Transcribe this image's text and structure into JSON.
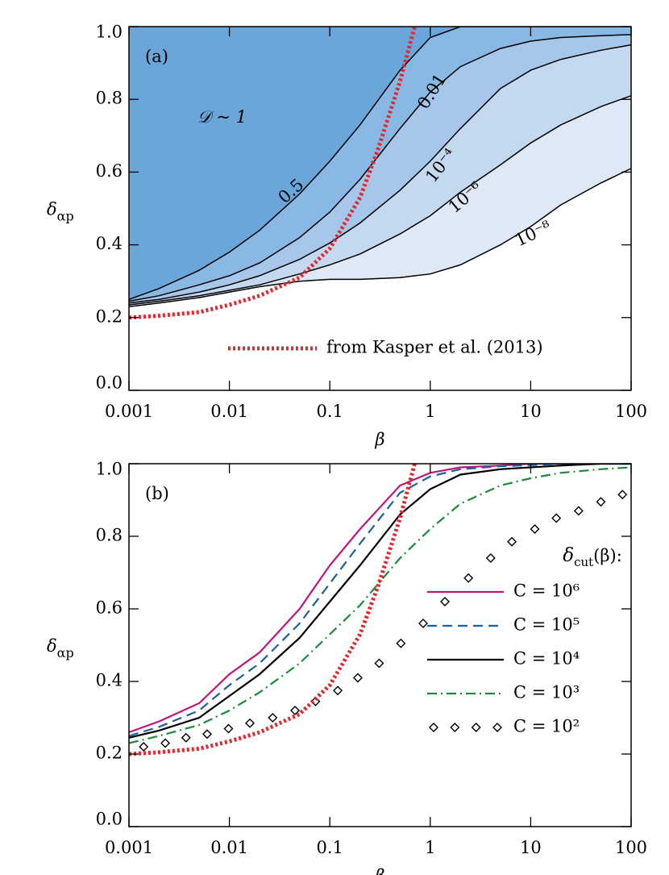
{
  "chart_data": [
    {
      "type": "contour",
      "panel_label": "(a)",
      "region_label": "𝒟 ~ 1",
      "x_label": "β",
      "y_label": {
        "main": "δ",
        "sub": "αp"
      },
      "log_x": true,
      "xlim": [
        0.001,
        100
      ],
      "ylim": [
        0,
        1
      ],
      "xticks": [
        0.001,
        0.01,
        0.1,
        1,
        10,
        100
      ],
      "yticks": [
        {
          "value": 0,
          "label": "0.0"
        },
        0.2,
        0.4,
        0.6,
        0.8,
        {
          "value": 1,
          "label": "1.0"
        }
      ],
      "x": [
        0.001,
        0.002,
        0.005,
        0.01,
        0.02,
        0.05,
        0.1,
        0.2,
        0.5,
        1,
        2,
        5,
        10,
        20,
        50,
        100
      ],
      "contours": [
        {
          "label": "0.5",
          "fill": "#6ba6da",
          "values": [
            0.25,
            0.28,
            0.33,
            0.38,
            0.44,
            0.54,
            0.63,
            0.73,
            0.88,
            0.97,
            1.0,
            1.0,
            1.0,
            1.0,
            1.0,
            1.0
          ]
        },
        {
          "label": "0.01",
          "fill": "#8ab8e4",
          "values": [
            0.245,
            0.26,
            0.29,
            0.315,
            0.35,
            0.42,
            0.49,
            0.58,
            0.72,
            0.82,
            0.89,
            0.94,
            0.96,
            0.97,
            0.975,
            0.978
          ]
        },
        {
          "label": "10⁻⁴",
          "fill": "#a6c7ea",
          "values": [
            0.24,
            0.25,
            0.27,
            0.29,
            0.315,
            0.36,
            0.405,
            0.46,
            0.55,
            0.63,
            0.72,
            0.83,
            0.88,
            0.91,
            0.935,
            0.95
          ]
        },
        {
          "label": "10⁻⁶",
          "fill": "#c4d8f0",
          "values": [
            0.235,
            0.245,
            0.26,
            0.275,
            0.29,
            0.32,
            0.345,
            0.375,
            0.43,
            0.48,
            0.545,
            0.62,
            0.68,
            0.73,
            0.78,
            0.81
          ]
        },
        {
          "label": "10⁻⁸",
          "fill": "#dfe8f6",
          "values": [
            0.23,
            0.24,
            0.255,
            0.27,
            0.285,
            0.3,
            0.305,
            0.305,
            0.31,
            0.32,
            0.345,
            0.4,
            0.45,
            0.51,
            0.57,
            0.61
          ]
        }
      ],
      "series": [
        {
          "name": "from Kasper et al. (2013)",
          "color": "#e2282e",
          "style": "dotted",
          "x": [
            0.001,
            0.002,
            0.005,
            0.01,
            0.02,
            0.05,
            0.1,
            0.2,
            0.3,
            0.5,
            0.7
          ],
          "values": [
            0.2,
            0.205,
            0.215,
            0.235,
            0.26,
            0.31,
            0.39,
            0.53,
            0.66,
            0.85,
            1.0
          ]
        }
      ],
      "legend": "lower right"
    },
    {
      "type": "line",
      "panel_label": "(b)",
      "x_label": "β",
      "y_label": {
        "main": "δ",
        "sub": "αp"
      },
      "log_x": true,
      "xlim": [
        0.001,
        100
      ],
      "ylim": [
        0,
        1
      ],
      "xticks": [
        0.001,
        0.01,
        0.1,
        1,
        10,
        100
      ],
      "yticks": [
        {
          "value": 0,
          "label": "0.0"
        },
        0.2,
        0.4,
        0.6,
        0.8,
        {
          "value": 1,
          "label": "1.0"
        }
      ],
      "x": [
        0.001,
        0.002,
        0.005,
        0.01,
        0.02,
        0.05,
        0.1,
        0.2,
        0.5,
        1,
        2,
        5,
        10,
        20,
        50,
        100
      ],
      "legend_title": {
        "main": "δ",
        "sub": "cut",
        "rest": "(β):"
      },
      "series": [
        {
          "name": "C = 10⁶",
          "color": "#c0157b",
          "style": "solid",
          "values": [
            0.26,
            0.29,
            0.34,
            0.42,
            0.48,
            0.6,
            0.72,
            0.82,
            0.94,
            0.975,
            0.99,
            0.995,
            1.0,
            1.0,
            1.0,
            1.0
          ]
        },
        {
          "name": "C = 10⁵",
          "color": "#1f5f9f",
          "style": "dashed",
          "values": [
            0.25,
            0.275,
            0.32,
            0.39,
            0.45,
            0.56,
            0.67,
            0.78,
            0.92,
            0.965,
            0.985,
            0.993,
            0.996,
            1.0,
            1.0,
            1.0
          ]
        },
        {
          "name": "C = 10⁴",
          "color": "#000000",
          "style": "solid",
          "values": [
            0.245,
            0.265,
            0.3,
            0.36,
            0.42,
            0.52,
            0.62,
            0.72,
            0.86,
            0.93,
            0.97,
            0.985,
            0.99,
            0.995,
            1.0,
            1.0
          ]
        },
        {
          "name": "C = 10³",
          "color": "#1a8a3c",
          "style": "dashdot",
          "values": [
            0.23,
            0.25,
            0.28,
            0.32,
            0.37,
            0.45,
            0.53,
            0.61,
            0.74,
            0.82,
            0.89,
            0.94,
            0.96,
            0.975,
            0.985,
            0.99
          ]
        },
        {
          "name": "C = 10²",
          "color": "#000000",
          "style": "diamond",
          "x": [
            0.0014,
            0.0023,
            0.0037,
            0.006,
            0.0098,
            0.016,
            0.027,
            0.045,
            0.072,
            0.12,
            0.19,
            0.31,
            0.51,
            0.85,
            1.4,
            2.4,
            4,
            6.5,
            11,
            18,
            30,
            50,
            82
          ],
          "values": [
            0.22,
            0.23,
            0.245,
            0.255,
            0.27,
            0.285,
            0.3,
            0.32,
            0.345,
            0.375,
            0.41,
            0.45,
            0.505,
            0.56,
            0.62,
            0.685,
            0.74,
            0.785,
            0.82,
            0.85,
            0.87,
            0.895,
            0.915
          ]
        },
        {
          "color": "#e2282e",
          "style": "dotted",
          "x": [
            0.001,
            0.002,
            0.005,
            0.01,
            0.02,
            0.05,
            0.1,
            0.2,
            0.3,
            0.5,
            0.7
          ],
          "values": [
            0.2,
            0.205,
            0.215,
            0.235,
            0.26,
            0.31,
            0.39,
            0.53,
            0.66,
            0.85,
            1.0
          ]
        }
      ],
      "legend": "lower right"
    }
  ]
}
